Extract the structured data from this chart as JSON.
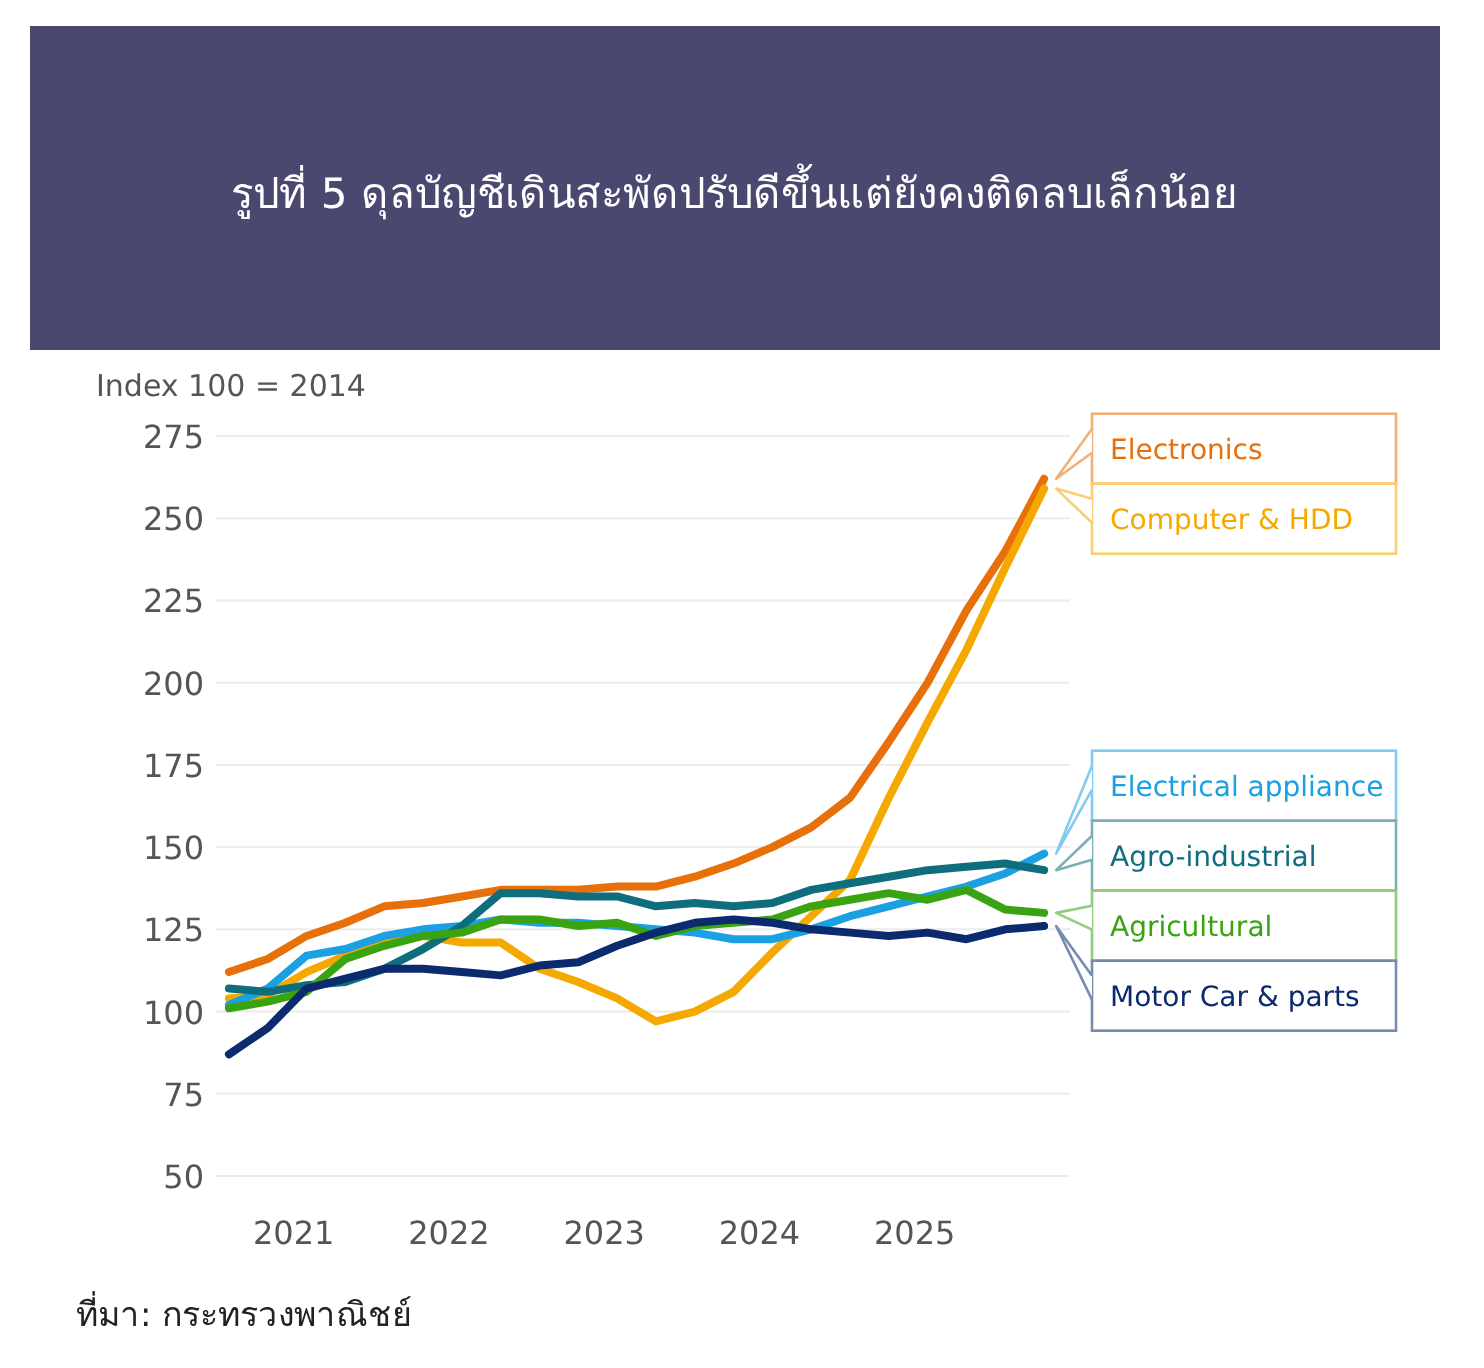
{
  "chart_data": {
    "type": "line",
    "title": "รูปที่ 5 ดุลบัญชีเดินสะพัดปรับดีขึ้นแต่ยังคงติดลบเล็กน้อย",
    "ylabel": "Index 100 = 2014",
    "x": [
      "2020-08",
      "2020-11",
      "2021-02",
      "2021-05",
      "2021-08",
      "2021-11",
      "2022-02",
      "2022-05",
      "2022-08",
      "2022-11",
      "2023-02",
      "2023-05",
      "2023-08",
      "2023-11",
      "2024-02",
      "2024-05",
      "2024-08",
      "2024-11",
      "2025-02",
      "2025-05",
      "2025-08",
      "2025-11"
    ],
    "series": [
      {
        "name": "Electronics",
        "color": "#e8700a",
        "values": [
          112,
          116,
          123,
          127,
          132,
          133,
          135,
          137,
          137,
          137,
          138,
          138,
          141,
          145,
          150,
          156,
          165,
          182,
          200,
          222,
          240,
          262
        ]
      },
      {
        "name": "Computer & HDD",
        "color": "#f5a800",
        "values": [
          104,
          105,
          112,
          117,
          121,
          123,
          121,
          121,
          113,
          109,
          104,
          97,
          100,
          106,
          118,
          129,
          140,
          165,
          188,
          210,
          235,
          259
        ]
      },
      {
        "name": "Electrical appliance",
        "color": "#1ba1e2",
        "values": [
          102,
          107,
          117,
          119,
          123,
          125,
          126,
          128,
          127,
          127,
          126,
          125,
          124,
          122,
          122,
          125,
          129,
          132,
          135,
          138,
          142,
          148
        ]
      },
      {
        "name": "Agro-industrial",
        "color": "#0e6e7e",
        "values": [
          107,
          106,
          108,
          109,
          113,
          119,
          126,
          136,
          136,
          135,
          135,
          132,
          133,
          132,
          133,
          137,
          139,
          141,
          143,
          144,
          145,
          143
        ]
      },
      {
        "name": "Agricultural",
        "color": "#3aa312",
        "values": [
          101,
          103,
          106,
          116,
          120,
          123,
          124,
          128,
          128,
          126,
          127,
          123,
          126,
          127,
          128,
          132,
          134,
          136,
          134,
          137,
          131,
          130
        ]
      },
      {
        "name": "Motor Car & parts",
        "color": "#0c2a6e",
        "values": [
          87,
          95,
          107,
          110,
          113,
          113,
          112,
          111,
          114,
          115,
          120,
          124,
          127,
          128,
          127,
          125,
          124,
          123,
          124,
          122,
          125,
          126
        ]
      }
    ],
    "xlim": [
      "2020-07",
      "2026-01"
    ],
    "xticks": [
      {
        "value": "2021-01",
        "label": "2021"
      },
      {
        "value": "2022-01",
        "label": "2022"
      },
      {
        "value": "2023-01",
        "label": "2023"
      },
      {
        "value": "2024-01",
        "label": "2024"
      },
      {
        "value": "2025-01",
        "label": "2025"
      }
    ],
    "ylim": [
      50,
      275
    ],
    "yticks": [
      50,
      75,
      100,
      125,
      150,
      175,
      200,
      225,
      250,
      275
    ],
    "grid": "y",
    "legend": "right",
    "marker": "none",
    "line_style": "solid",
    "annotations": [
      "ที่มา: กระทรวงพาณิชย์"
    ]
  }
}
